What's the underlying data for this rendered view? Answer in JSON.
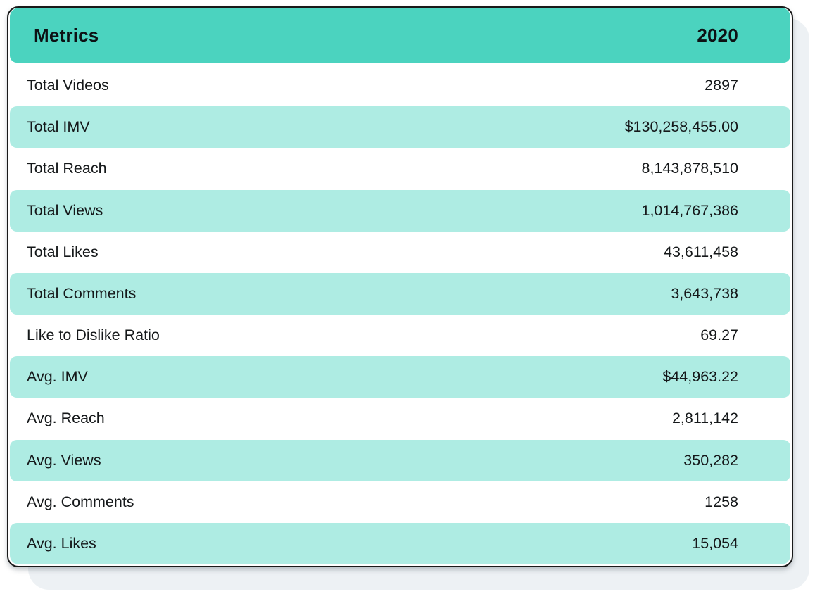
{
  "colors": {
    "header_teal": "#4bd3bf",
    "row_mint": "#aeece3",
    "backing_gray": "#edf1f4",
    "card_border": "#191919",
    "text_dark": "#15181a"
  },
  "chart_data": {
    "type": "table",
    "columns": [
      "Metrics",
      "2020"
    ],
    "rows": [
      {
        "metric": "Total Videos",
        "value": "2897"
      },
      {
        "metric": "Total IMV",
        "value": "$130,258,455.00"
      },
      {
        "metric": "Total Reach",
        "value": "8,143,878,510"
      },
      {
        "metric": "Total Views",
        "value": "1,014,767,386"
      },
      {
        "metric": "Total Likes",
        "value": "43,611,458"
      },
      {
        "metric": "Total Comments",
        "value": "3,643,738"
      },
      {
        "metric": "Like to Dislike Ratio",
        "value": "69.27"
      },
      {
        "metric": "Avg. IMV",
        "value": "$44,963.22"
      },
      {
        "metric": "Avg. Reach",
        "value": "2,811,142"
      },
      {
        "metric": "Avg. Views",
        "value": "350,282"
      },
      {
        "metric": "Avg. Comments",
        "value": "1258"
      },
      {
        "metric": "Avg. Likes",
        "value": "15,054"
      }
    ],
    "layout": {
      "header_background": "#4bd3bf",
      "alternating_rows": true,
      "value_alignment": "right"
    }
  }
}
